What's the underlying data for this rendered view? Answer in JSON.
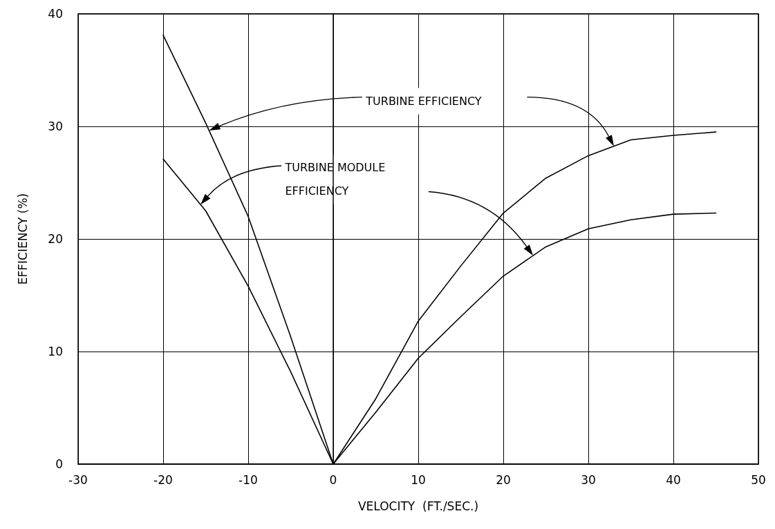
{
  "chart_data": {
    "type": "line",
    "xlabel": "VELOCITY  (FT./SEC.)",
    "ylabel": "EFFICIENCY (%)",
    "xlim": [
      -30,
      50
    ],
    "xticks": [
      -30,
      -20,
      -10,
      0,
      10,
      20,
      30,
      40,
      50
    ],
    "ylim": [
      0,
      40
    ],
    "yticks": [
      0,
      10,
      20,
      30,
      40
    ],
    "grid": true,
    "marker": "none",
    "line_style": "solid",
    "annotations": [
      "TURBINE EFFICIENCY",
      "TURBINE MODULE\nEFFICIENCY"
    ],
    "series": [
      {
        "color": "#000000",
        "x": [
          -20,
          -15,
          -10,
          -5,
          0,
          5,
          10,
          15,
          20,
          25,
          30,
          35,
          40,
          45
        ],
        "values": [
          38.1,
          30.3,
          22.0,
          11.3,
          0,
          5.8,
          12.7,
          17.6,
          22.3,
          25.4,
          27.4,
          28.8,
          29.2,
          29.5
        ]
      },
      {
        "color": "#000000",
        "x": [
          -20,
          -15,
          -10,
          -5,
          0,
          5,
          10,
          15,
          20,
          25,
          30,
          35,
          40,
          45
        ],
        "values": [
          27.1,
          22.5,
          15.8,
          8.2,
          0,
          4.6,
          9.4,
          13.1,
          16.7,
          19.3,
          20.9,
          21.7,
          22.2,
          22.3
        ]
      }
    ]
  }
}
